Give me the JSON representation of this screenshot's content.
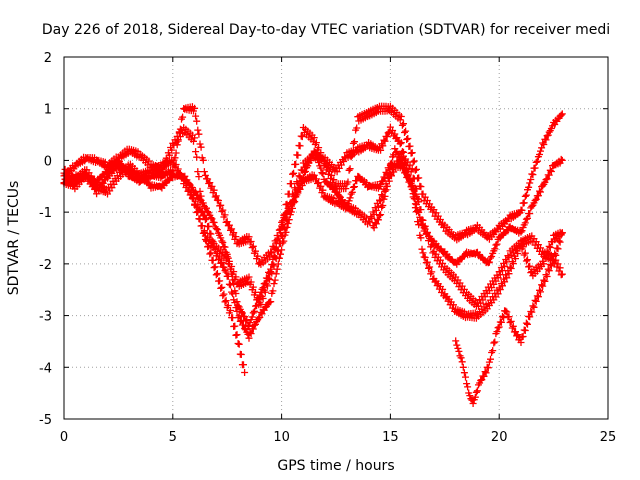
{
  "chart_data": {
    "type": "scatter",
    "title": "Day 226 of 2018, Sidereal Day-to-day VTEC variation (SDTVAR) for receiver medi",
    "xlabel": "GPS time / hours",
    "ylabel": "SDTVAR / TECUs",
    "xlim": [
      0,
      25
    ],
    "ylim": [
      -5,
      2
    ],
    "xticks": [
      0,
      5,
      10,
      15,
      20,
      25
    ],
    "yticks": [
      -5,
      -4,
      -3,
      -2,
      -1,
      0,
      1,
      2
    ],
    "grid": true,
    "marker": "plus",
    "color": "#ff0000",
    "series": [
      {
        "x": [
          0,
          0.5,
          1,
          1.5,
          2,
          2.5,
          3,
          3.5,
          4,
          4.5,
          5,
          5.5,
          6,
          6.5,
          7,
          7.5,
          8,
          8.5,
          9,
          9.5,
          10,
          10.5,
          11,
          11.5,
          12,
          12.5,
          13,
          13.5,
          14,
          14.5,
          15,
          15.5,
          16,
          16.5,
          17,
          17.5,
          18,
          18.5,
          19,
          19.5,
          20,
          20.5,
          21,
          21.5,
          22,
          22.5,
          22.9
        ],
        "y": [
          -0.3,
          -0.1,
          0.05,
          0.0,
          -0.1,
          0.05,
          0.2,
          0.1,
          -0.1,
          -0.2,
          0.3,
          0.6,
          0.4,
          -1.5,
          -1.7,
          -1.9,
          -2.4,
          -2.3,
          -2.8,
          -2.2,
          -1.5,
          -0.7,
          -0.1,
          0.1,
          0.0,
          -0.2,
          0.1,
          0.2,
          0.3,
          0.2,
          0.6,
          0.3,
          -0.6,
          -1.3,
          -1.6,
          -1.8,
          -2.0,
          -1.8,
          -1.8,
          -2.0,
          -1.5,
          -1.3,
          -1.4,
          -0.9,
          -0.5,
          -0.1,
          0.0
        ]
      },
      {
        "x": [
          0,
          0.5,
          1,
          1.5,
          2,
          2.5,
          3,
          3.5,
          4,
          4.5,
          5,
          5.5,
          6,
          6.5,
          7,
          7.5,
          8,
          8.5,
          9,
          9.5,
          10,
          10.5,
          11,
          11.5,
          12,
          12.5,
          13,
          13.5,
          14,
          14.5,
          15,
          15.5,
          16,
          16.5,
          17,
          17.5,
          18,
          18.5,
          19,
          19.5,
          20,
          20.5,
          21,
          21.5,
          22,
          22.5,
          22.9
        ],
        "y": [
          -0.4,
          -0.3,
          -0.3,
          -0.4,
          -0.2,
          0.0,
          -0.3,
          -0.4,
          -0.3,
          -0.3,
          -0.2,
          1.0,
          1.0,
          -0.3,
          -0.7,
          -1.2,
          -1.6,
          -1.5,
          -2.0,
          -1.8,
          -1.3,
          -0.3,
          0.6,
          0.4,
          -0.1,
          -0.5,
          -0.5,
          0.8,
          0.9,
          1.0,
          1.0,
          0.8,
          0.1,
          -0.7,
          -1.0,
          -1.3,
          -1.5,
          -1.4,
          -1.3,
          -1.5,
          -1.3,
          -1.1,
          -1.0,
          -0.3,
          0.3,
          0.7,
          0.9
        ]
      },
      {
        "x": [
          0,
          0.5,
          1,
          1.5,
          2,
          2.5,
          3,
          3.5,
          4,
          4.5,
          5,
          5.5,
          6,
          6.5,
          7,
          7.5,
          8,
          8.5,
          9,
          9.5,
          10,
          10.5,
          11,
          11.5,
          12,
          12.5,
          13,
          13.5,
          14,
          14.5,
          15,
          15.5,
          16,
          16.5,
          17,
          17.5,
          18,
          18.5,
          19,
          19.5,
          20,
          20.5,
          21,
          21.5,
          22,
          22.5,
          22.9
        ],
        "y": [
          -0.4,
          -0.5,
          -0.3,
          -0.6,
          -0.3,
          -0.1,
          -0.2,
          -0.3,
          -0.5,
          -0.5,
          -0.3,
          -0.3,
          -0.6,
          -0.9,
          -1.3,
          -1.8,
          -2.8,
          -3.2,
          -2.6,
          -2.1,
          -1.2,
          -0.8,
          -0.4,
          -0.3,
          -0.7,
          -0.8,
          -0.9,
          -1.0,
          -1.2,
          -0.8,
          -0.3,
          0.1,
          -0.2,
          -1.2,
          -1.8,
          -2.1,
          -2.3,
          -2.6,
          -2.8,
          -2.5,
          -2.2,
          -1.8,
          -1.6,
          -2.2,
          -2.0,
          -1.5,
          -1.4
        ]
      },
      {
        "x": [
          0,
          0.5,
          1,
          1.5,
          2,
          2.5,
          3,
          3.5,
          4,
          4.5,
          5,
          5.5,
          6,
          6.5,
          7,
          7.5,
          8,
          8.5,
          9,
          9.5,
          10,
          10.5,
          11,
          11.5,
          12,
          12.5,
          13,
          13.5,
          14,
          14.5,
          15,
          15.5,
          16,
          16.5,
          17,
          17.5,
          18,
          18.5,
          19,
          19.5,
          20,
          20.5,
          21,
          21.5,
          22,
          22.5,
          22.9
        ],
        "y": [
          -0.2,
          -0.4,
          -0.2,
          -0.5,
          -0.6,
          -0.3,
          -0.1,
          -0.3,
          -0.2,
          -0.1,
          0.0,
          -0.4,
          -0.8,
          -1.1,
          -1.8,
          -2.2,
          -3.0,
          -3.4,
          -3.0,
          -2.7,
          -1.7,
          -0.9,
          -0.3,
          0.2,
          -0.4,
          -0.6,
          -0.9,
          -0.3,
          -0.5,
          -0.5,
          -0.1,
          -0.1,
          -0.5,
          -1.8,
          -2.3,
          -2.6,
          -2.9,
          -3.0,
          -3.0,
          -2.8,
          -2.5,
          -2.1,
          -1.6,
          -1.5,
          -1.8,
          -1.9,
          -2.2
        ]
      },
      {
        "x": [
          5.9,
          6.2,
          6.5,
          6.8,
          7.1,
          7.4,
          7.7,
          8.0,
          8.3
        ],
        "y": [
          -0.7,
          -1.1,
          -1.5,
          -1.9,
          -2.3,
          -2.7,
          -3.0,
          -3.5,
          -4.1
        ]
      },
      {
        "x": [
          18.0,
          18.3,
          18.6,
          18.8,
          19.1,
          19.5,
          19.9,
          20.3,
          20.7,
          21.0,
          21.4,
          21.7,
          22.0,
          22.3,
          22.6,
          22.9
        ],
        "y": [
          -3.5,
          -3.9,
          -4.5,
          -4.7,
          -4.3,
          -4.0,
          -3.3,
          -2.9,
          -3.3,
          -3.5,
          -3.0,
          -2.7,
          -2.4,
          -2.1,
          -1.8,
          -1.4
        ]
      },
      {
        "x": [
          14.2,
          14.5,
          14.8,
          15.0,
          15.2,
          15.4,
          15.7,
          16.0,
          16.3
        ],
        "y": [
          -1.3,
          -1.1,
          -0.6,
          -0.1,
          0.2,
          0.1,
          -0.2,
          -0.5,
          -0.8
        ]
      }
    ]
  }
}
